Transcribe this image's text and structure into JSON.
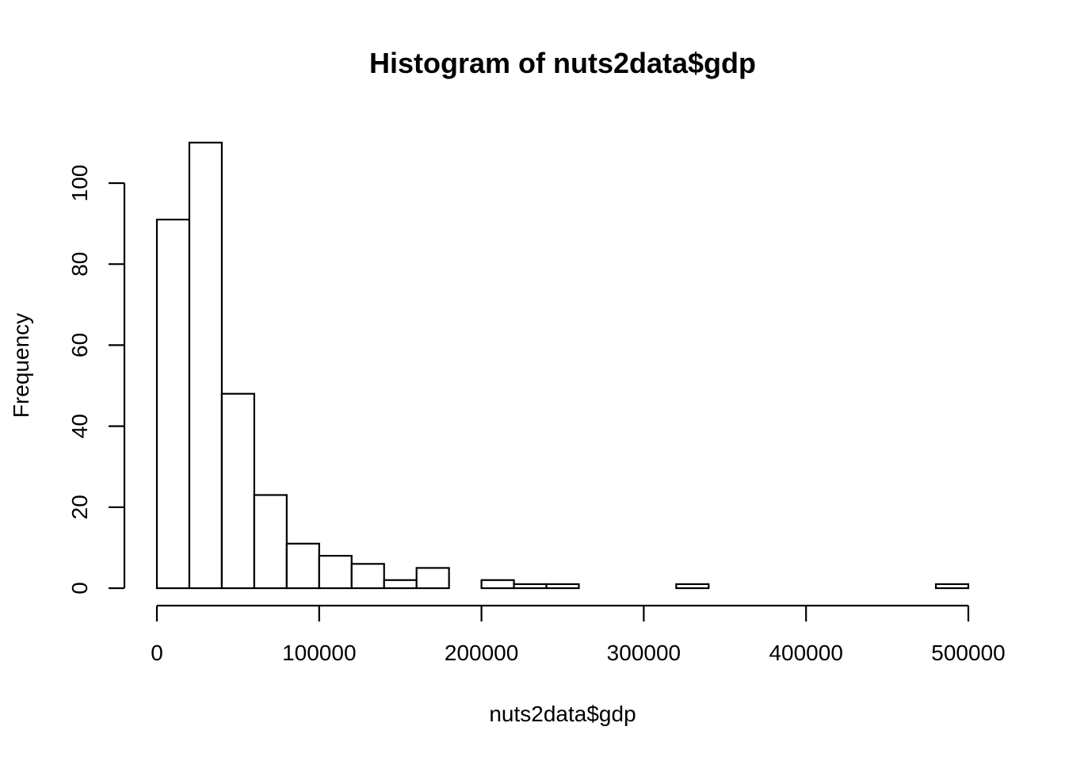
{
  "chart_data": {
    "type": "bar",
    "title": "Histogram of nuts2data$gdp",
    "xlabel": "nuts2data$gdp",
    "ylabel": "Frequency",
    "bin_width": 20000,
    "bin_start": 0,
    "xlim": [
      0,
      500000
    ],
    "ylim": [
      0,
      110
    ],
    "x_ticks": [
      0,
      100000,
      200000,
      300000,
      400000,
      500000
    ],
    "x_tick_labels": [
      "0",
      "100000",
      "200000",
      "300000",
      "400000",
      "500000"
    ],
    "y_ticks": [
      0,
      20,
      40,
      60,
      80,
      100
    ],
    "y_tick_labels": [
      "0",
      "20",
      "40",
      "60",
      "80",
      "100"
    ],
    "values": [
      91,
      110,
      48,
      23,
      11,
      8,
      6,
      2,
      5,
      0,
      2,
      1,
      1,
      0,
      0,
      0,
      1,
      0,
      0,
      0,
      0,
      0,
      0,
      0,
      1
    ],
    "grid": false,
    "legend": "none"
  }
}
